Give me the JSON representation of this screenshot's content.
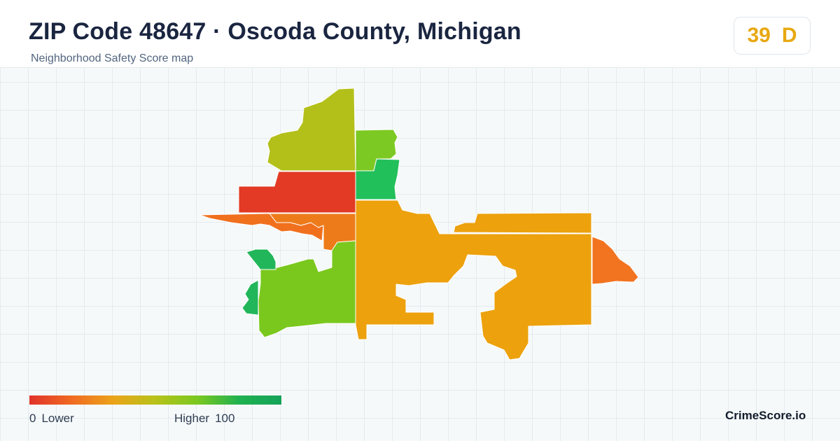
{
  "header": {
    "title": "ZIP Code 48647 · Oscoda County, Michigan",
    "subtitle": "Neighborhood Safety Score map"
  },
  "score": {
    "value": "39",
    "grade": "D",
    "color": "#e8a812"
  },
  "map": {
    "regions": [
      {
        "name": "north-west-tract",
        "color": "#b3c01a"
      },
      {
        "name": "north-center-tract",
        "color": "#7dc923"
      },
      {
        "name": "north-east-small-tract",
        "color": "#22c05a"
      },
      {
        "name": "central-west-tract",
        "color": "#e23a24"
      },
      {
        "name": "west-strip-tract",
        "color": "#f0701e"
      },
      {
        "name": "center-strip-tract",
        "color": "#ee7b1a"
      },
      {
        "name": "south-west-tract",
        "color": "#7ac81e"
      },
      {
        "name": "west-edge-tract",
        "color": "#22b65a"
      },
      {
        "name": "central-large-tract",
        "color": "#eca10d"
      },
      {
        "name": "east-strip-tract",
        "color": "#eca10d"
      },
      {
        "name": "far-east-tract",
        "color": "#f27320"
      }
    ]
  },
  "legend": {
    "min_value": "0",
    "min_label": "Lower",
    "max_label": "Higher",
    "max_value": "100",
    "colors": [
      "#e0332a",
      "#eba31a",
      "#7ac820",
      "#16a35a"
    ]
  },
  "brand": "CrimeScore.io"
}
